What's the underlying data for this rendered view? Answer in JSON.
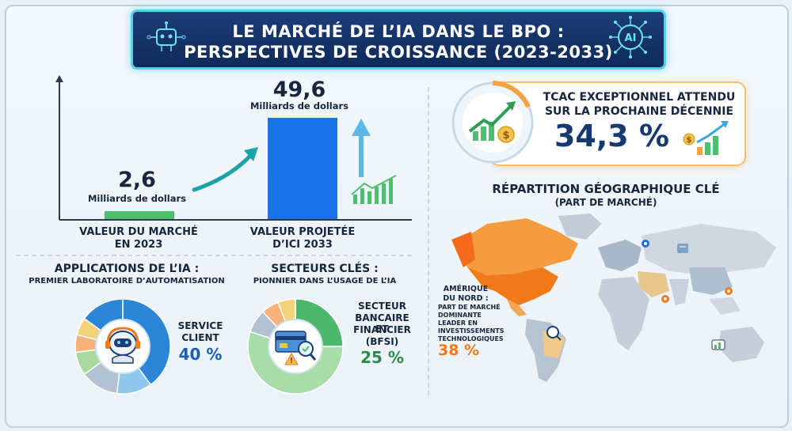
{
  "title": {
    "line1": "LE MARCHÉ DE L’IA DANS LE BPO :",
    "line2": "PERSPECTIVES DE CROISSANCE (2023-2033)"
  },
  "icons": {
    "left": "robot-chip-icon",
    "right": "ai-brain-circuit-icon"
  },
  "chart_data": [
    {
      "type": "bar",
      "categories": [
        "VALEUR DU MARCHÉ EN 2023",
        "VALEUR PROJETÉE D’ICI 2033"
      ],
      "values": [
        2.6,
        49.6
      ],
      "value_labels": [
        "2,6",
        "49,6"
      ],
      "unit_label": "Milliards de dollars",
      "colors": [
        "#4cc06d",
        "#1a73e8"
      ]
    },
    {
      "type": "pie",
      "title": "APPLICATIONS DE L’IA :",
      "subtitle": "PREMIER LABORATOIRE D’AUTOMATISATION",
      "highlight_label": "SERVICE CLIENT",
      "highlight_value": "40 %",
      "slices": [
        {
          "value": 40,
          "color": "#2b86d8"
        },
        {
          "value": 12,
          "color": "#8ec8ee"
        },
        {
          "value": 13,
          "color": "#b3c2d3"
        },
        {
          "value": 8,
          "color": "#a9d9a0"
        },
        {
          "value": 6,
          "color": "#f6b27a"
        },
        {
          "value": 6,
          "color": "#f2d27a"
        },
        {
          "value": 15,
          "color": "#2b86d8"
        }
      ]
    },
    {
      "type": "pie",
      "title": "SECTEURS CLÉS :",
      "subtitle": "PIONNIER DANS L’USAGE DE L’IA",
      "highlight_label": "SECTEUR BANCAIRE ET FINANCIER (BFSI)",
      "highlight_value": "25 %",
      "slices": [
        {
          "value": 25,
          "color": "#4cb86b"
        },
        {
          "value": 55,
          "color": "#a8dca8"
        },
        {
          "value": 8,
          "color": "#b3c2d3"
        },
        {
          "value": 6,
          "color": "#f6b27a"
        },
        {
          "value": 6,
          "color": "#f2d27a"
        }
      ]
    }
  ],
  "bars": {
    "val_2023": "2,6",
    "unit_2023": "Milliards de dollars",
    "label_2023_l1": "VALEUR DU MARCHÉ",
    "label_2023_l2": "EN 2023",
    "val_2033": "49,6",
    "unit_2033": "Milliards de dollars",
    "label_2033_l1": "VALEUR PROJETÉE",
    "label_2033_l2": "D’ICI 2033"
  },
  "apps": {
    "title": "APPLICATIONS DE L’IA :",
    "subtitle": "PREMIER LABORATOIRE D’AUTOMATISATION",
    "label_l1": "SERVICE",
    "label_l2": "CLIENT",
    "value": "40 %"
  },
  "sectors": {
    "title": "SECTEURS CLÉS :",
    "subtitle": "PIONNIER DANS L’USAGE DE L’IA",
    "label_l1": "SECTEUR",
    "label_l2": "BANCAIRE ET",
    "label_l3": "FINANCIER",
    "label_l4": "(BFSI)",
    "value": "25 %"
  },
  "cagr": {
    "line1": "TCAC EXCEPTIONNEL ATTENDU",
    "line2": "SUR LA PROCHAINE DÉCENNIE",
    "value": "34,3 %"
  },
  "geo": {
    "title": "RÉPARTITION GÉOGRAPHIQUE CLÉ",
    "subtitle": "(PART DE MARCHÉ)",
    "na_l1": "AMÉRIQUE",
    "na_l2": "DU NORD :",
    "na_l3": "PART DE MARCHÉ",
    "na_l4": "DOMINANTE",
    "na_l5": "LEADER EN",
    "na_l6": "INVESTISSEMENTS",
    "na_l7": "TECHNOLOGIQUES",
    "na_value": "38 %"
  },
  "colors": {
    "navy": "#0f2a5a",
    "teal_border": "#4fd3e8",
    "green": "#4cc06d",
    "blue": "#1a73e8",
    "orange": "#f07a1a"
  }
}
